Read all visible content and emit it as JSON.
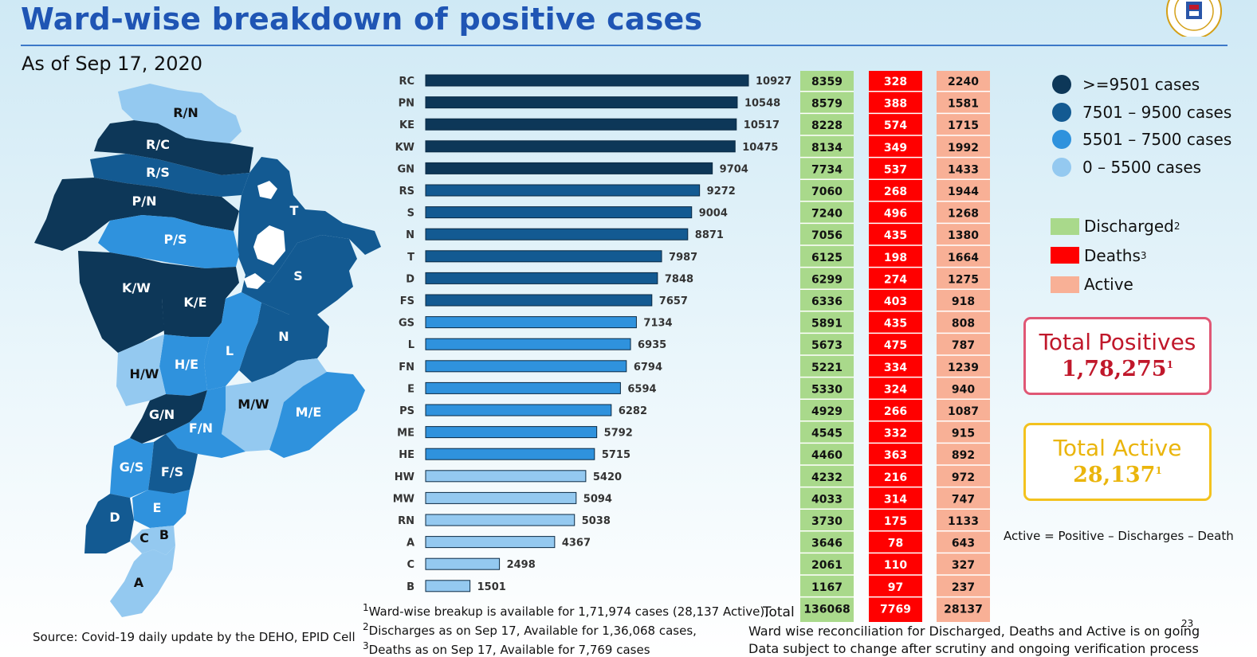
{
  "title": "Ward-wise breakdown of positive cases",
  "subtitle": "As of Sep 17, 2020",
  "logo_icon": "municipal-corporation-seal-icon",
  "chart_data": {
    "type": "bar",
    "orientation": "horizontal",
    "categories": [
      "RC",
      "PN",
      "KE",
      "KW",
      "GN",
      "RS",
      "S",
      "N",
      "T",
      "D",
      "FS",
      "GS",
      "L",
      "FN",
      "E",
      "PS",
      "ME",
      "HE",
      "HW",
      "MW",
      "RN",
      "A",
      "C",
      "B"
    ],
    "values": [
      10927,
      10548,
      10517,
      10475,
      9704,
      9272,
      9004,
      8871,
      7987,
      7848,
      7657,
      7134,
      6935,
      6794,
      6594,
      6282,
      5792,
      5715,
      5420,
      5094,
      5038,
      4367,
      2498,
      1501
    ],
    "xlim": [
      0,
      11500
    ],
    "bar_colors": {
      "ge_9501": "#0d3758",
      "r_7501_9500": "#135a92",
      "r_5501_7500": "#2f92dd",
      "r_0_5500": "#94c9f0"
    },
    "table": {
      "discharged": [
        8359,
        8579,
        8228,
        8134,
        7734,
        7060,
        7240,
        7056,
        6125,
        6299,
        6336,
        5891,
        5673,
        5221,
        5330,
        4929,
        4545,
        4460,
        4232,
        4033,
        3730,
        3646,
        2061,
        1167
      ],
      "deaths": [
        328,
        388,
        574,
        349,
        537,
        268,
        496,
        435,
        198,
        274,
        403,
        435,
        475,
        334,
        324,
        266,
        332,
        363,
        216,
        314,
        175,
        78,
        110,
        97
      ],
      "active": [
        2240,
        1581,
        1715,
        1992,
        1433,
        1944,
        1268,
        1380,
        1664,
        1275,
        918,
        808,
        787,
        1239,
        940,
        1087,
        915,
        892,
        972,
        747,
        1133,
        643,
        327,
        237
      ],
      "total_label": "Total",
      "totals": {
        "discharged": "136068",
        "deaths": "7769",
        "active": "28137"
      },
      "colors": {
        "discharged": "#a9d98b",
        "deaths": "#ff0000",
        "active": "#f8b096"
      }
    }
  },
  "legend_ranges": [
    {
      "label": ">=9501 cases",
      "color": "#0d3758"
    },
    {
      "label": "7501 – 9500 cases",
      "color": "#135a92"
    },
    {
      "label": "5501 – 7500 cases",
      "color": "#2f92dd"
    },
    {
      "label": "0 – 5500 cases",
      "color": "#94c9f0"
    }
  ],
  "legend_cols": [
    {
      "label": "Discharged",
      "sup": "2",
      "color": "#a9d98b"
    },
    {
      "label": "Deaths",
      "sup": "3",
      "color": "#ff0000"
    },
    {
      "label": "Active",
      "sup": "",
      "color": "#f8b096"
    }
  ],
  "totals_box": {
    "positives_label": "Total Positives",
    "positives_value": "1,78,275",
    "positives_sup": "1",
    "active_label": "Total Active",
    "active_value": "28,137",
    "active_sup": "1"
  },
  "formula": "Active = Positive – Discharges – Death",
  "map_labels": [
    "R/N",
    "R/C",
    "R/S",
    "P/N",
    "P/S",
    "K/W",
    "K/E",
    "T",
    "S",
    "N",
    "L",
    "H/E",
    "H/W",
    "G/N",
    "F/N",
    "M/W",
    "M/E",
    "G/S",
    "F/S",
    "E",
    "D",
    "C",
    "B",
    "A"
  ],
  "footnotes": [
    {
      "sup": "1",
      "text": "Ward-wise breakup is available for 1,71,974 cases (28,137 Active),"
    },
    {
      "sup": "2",
      "text": "Discharges as on Sep 17, Available for 1,36,068 cases,"
    },
    {
      "sup": "3",
      "text": "Deaths as on Sep 17, Available for 7,769 cases"
    }
  ],
  "notes": [
    "Ward wise reconciliation for Discharged, Deaths and Active is on going",
    "Data subject to change after scrutiny and ongoing verification process"
  ],
  "source": "Source: Covid-19 daily update by the DEHO, EPID Cell",
  "page_number": "23"
}
